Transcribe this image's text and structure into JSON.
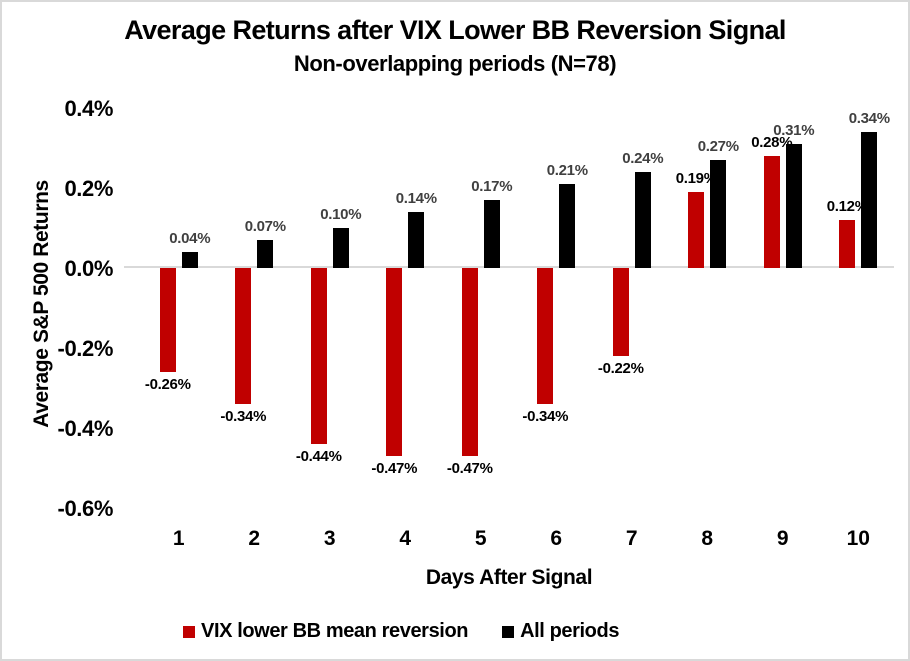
{
  "title": "Average Returns after VIX Lower BB Reversion Signal",
  "subtitle": "Non-overlapping periods (N=78)",
  "chart_data": {
    "type": "bar",
    "categories": [
      "1",
      "2",
      "3",
      "4",
      "5",
      "6",
      "7",
      "8",
      "9",
      "10"
    ],
    "xlabel": "Days After Signal",
    "ylabel": "Average S&P 500 Returns",
    "y_tick_labels": [
      "0.4%",
      "0.2%",
      "0.0%",
      "-0.2%",
      "-0.4%",
      "-0.6%"
    ],
    "ylim_pct": [
      -0.6,
      0.4
    ],
    "grid": "zero-line-only",
    "legend_position": "bottom",
    "series": [
      {
        "name": "VIX lower BB mean reversion",
        "color": "#C00000",
        "label_color": "#000000",
        "unit": "%",
        "values": [
          -0.26,
          -0.34,
          -0.44,
          -0.47,
          -0.47,
          -0.34,
          -0.22,
          0.19,
          0.28,
          0.12
        ],
        "labels": [
          "-0.26%",
          "-0.34%",
          "-0.44%",
          "-0.47%",
          "-0.47%",
          "-0.34%",
          "-0.22%",
          "0.19%",
          "0.28%",
          "0.12%"
        ]
      },
      {
        "name": "All periods",
        "color": "#000000",
        "label_color": "#404040",
        "unit": "%",
        "values": [
          0.04,
          0.07,
          0.1,
          0.14,
          0.17,
          0.21,
          0.24,
          0.27,
          0.31,
          0.34
        ],
        "labels": [
          "0.04%",
          "0.07%",
          "0.10%",
          "0.14%",
          "0.17%",
          "0.21%",
          "0.24%",
          "0.27%",
          "0.31%",
          "0.34%"
        ]
      }
    ],
    "colors": {
      "background": "#FFFFFF",
      "chart_border": "#D9D9D9",
      "zero_line": "#D9D9D9",
      "axis_text": "#000000"
    }
  }
}
